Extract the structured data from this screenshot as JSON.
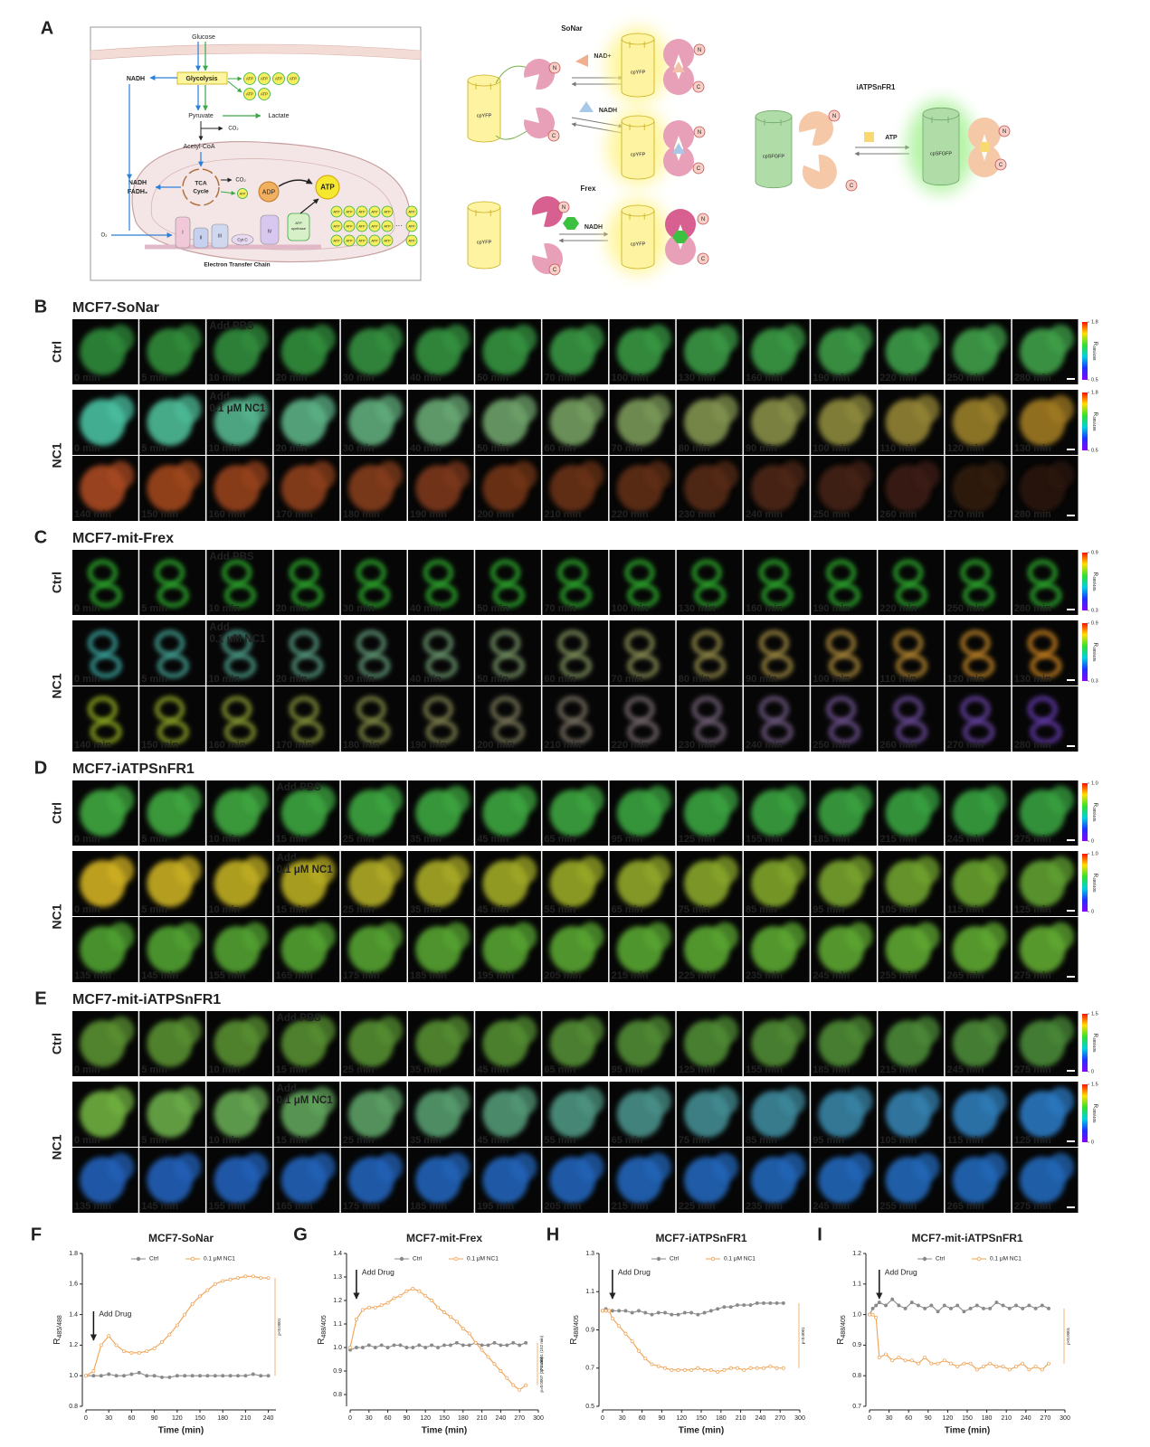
{
  "panel_a": {
    "label": "A",
    "metabolism": {
      "glucose": "Glucose",
      "glycolysis": "Glycolysis",
      "nadh": "NADH",
      "atp": "ATP",
      "pyruvate": "Pyruvate",
      "lactate": "Lactate",
      "co2": "CO₂",
      "acetyl_coa": "Acetyl-CoA",
      "tca": [
        "TCA",
        "Cycle"
      ],
      "nadh_fadh2": [
        "NADH",
        "FADH₂"
      ],
      "adp": "ADP",
      "atp_synthase": [
        "ATP",
        "synthase"
      ],
      "complexes": [
        "I",
        "II",
        "III",
        "Cyt C",
        "IV"
      ],
      "o2": "O₂",
      "ellipsis": "···",
      "etc": "Electron Transfer Chain"
    },
    "sonar": {
      "title": "SoNar",
      "fp": "cpYFP",
      "n": "N",
      "c": "C",
      "nad": "NAD+",
      "nadh": "NADH"
    },
    "frex": {
      "title": "Frex",
      "fp": "cpYFP",
      "n": "N",
      "c": "C",
      "nadh": "NADH"
    },
    "iatpsnfr1": {
      "title": "iATPSnFR1",
      "fp": "cpSFGFP",
      "n": "N",
      "c": "C",
      "atp": "ATP"
    }
  },
  "imaging": [
    {
      "label": "B",
      "title": "MCF7-SoNar",
      "rows": [
        {
          "label": "Ctrl",
          "strips": [
            [
              "0 min",
              "5 min",
              "10 min",
              "20 min",
              "30 min",
              "40 min",
              "50 min",
              "70 min",
              "100 min",
              "130 min",
              "160 min",
              "190 min",
              "220 min",
              "250 min",
              "280 min"
            ]
          ],
          "annotation": {
            "frame": 2,
            "text": [
              "Add PBS"
            ]
          },
          "colorbar": {
            "ticks": [
              0.5,
              1.8
            ],
            "label": [
              "R",
              "485/488"
            ]
          }
        },
        {
          "label": "NC1",
          "strips": [
            [
              "0 min",
              "5 min",
              "10 min",
              "20 min",
              "30 min",
              "40 min",
              "50 min",
              "60 min",
              "70 min",
              "80 min",
              "90 min",
              "100 min",
              "110 min",
              "120 min",
              "130 min"
            ],
            [
              "140 min",
              "150 min",
              "160 min",
              "170 min",
              "180 min",
              "190 min",
              "200 min",
              "210 min",
              "220 min",
              "230 min",
              "240 min",
              "250 min",
              "260 min",
              "270 min",
              "280 min"
            ]
          ],
          "annotation": {
            "frame": 2,
            "text": [
              "Add",
              "0.1 μM NC1"
            ]
          },
          "colorbar": {
            "ticks": [
              0.5,
              1.8
            ],
            "label": [
              "R",
              "485/488"
            ]
          }
        }
      ]
    },
    {
      "label": "C",
      "title": "MCF7-mit-Frex",
      "rows": [
        {
          "label": "Ctrl",
          "strips": [
            [
              "0 min",
              "5 min",
              "10 min",
              "20 min",
              "30 min",
              "40 min",
              "50 min",
              "70 min",
              "100 min",
              "130 min",
              "160 min",
              "190 min",
              "220 min",
              "250 min",
              "280 min"
            ]
          ],
          "annotation": {
            "frame": 2,
            "text": [
              "Add PBS"
            ]
          },
          "colorbar": {
            "ticks": [
              0.3,
              0.9
            ],
            "label": [
              "R",
              "488/405"
            ]
          }
        },
        {
          "label": "NC1",
          "strips": [
            [
              "0 min",
              "5 min",
              "10 min",
              "20 min",
              "30 min",
              "40 min",
              "50 min",
              "60 min",
              "70 min",
              "80 min",
              "90 min",
              "100 min",
              "110 min",
              "120 min",
              "130 min"
            ],
            [
              "140 min",
              "150 min",
              "160 min",
              "170 min",
              "180 min",
              "190 min",
              "200 min",
              "210 min",
              "220 min",
              "230 min",
              "240 min",
              "250 min",
              "260 min",
              "270 min",
              "280 min"
            ]
          ],
          "annotation": {
            "frame": 2,
            "text": [
              "Add",
              "0.1 μM NC1"
            ]
          },
          "colorbar": {
            "ticks": [
              0.3,
              0.9
            ],
            "label": [
              "R",
              "488/405"
            ]
          }
        }
      ]
    },
    {
      "label": "D",
      "title": "MCF7-iATPSnFR1",
      "rows": [
        {
          "label": "Ctrl",
          "strips": [
            [
              "0 min",
              "5 min",
              "10 min",
              "15 min",
              "25 min",
              "35 min",
              "45 min",
              "65 min",
              "95 min",
              "125 min",
              "155 min",
              "185 min",
              "215 min",
              "245 min",
              "275 min"
            ]
          ],
          "annotation": {
            "frame": 3,
            "text": [
              "Add PBS"
            ]
          },
          "colorbar": {
            "ticks": [
              0,
              {
                "value": 1,
                "label": "1.0"
              }
            ],
            "label": [
              "R",
              "488/405"
            ]
          }
        },
        {
          "label": "NC1",
          "strips": [
            [
              "0 min",
              "5 min",
              "10 min",
              "15 min",
              "25 min",
              "35 min",
              "45 min",
              "55 min",
              "65 min",
              "75 min",
              "85 min",
              "95 min",
              "105 min",
              "115 min",
              "125 min"
            ],
            [
              "135 min",
              "145 min",
              "155 min",
              "165 min",
              "175 min",
              "185 min",
              "195 min",
              "205 min",
              "215 min",
              "225 min",
              "235 min",
              "245 min",
              "255 min",
              "265 min",
              "275 min"
            ]
          ],
          "annotation": {
            "frame": 3,
            "text": [
              "Add",
              "0.1 μM NC1"
            ]
          },
          "colorbar": {
            "ticks": [
              0,
              {
                "value": 1,
                "label": "1.0"
              }
            ],
            "label": [
              "R",
              "488/405"
            ]
          }
        }
      ]
    },
    {
      "label": "E",
      "title": "MCF7-mit-iATPSnFR1",
      "rows": [
        {
          "label": "Ctrl",
          "strips": [
            [
              "0 min",
              "5 min",
              "10 min",
              "15 min",
              "25 min",
              "35 min",
              "45 min",
              "65 min",
              "95 min",
              "125 min",
              "155 min",
              "185 min",
              "215 min",
              "245 min",
              "275 min"
            ]
          ],
          "annotation": {
            "frame": 3,
            "text": [
              "Add PBS"
            ]
          },
          "colorbar": {
            "ticks": [
              0,
              1.5
            ],
            "label": [
              "R",
              "488/405"
            ]
          }
        },
        {
          "label": "NC1",
          "strips": [
            [
              "0 min",
              "5 min",
              "10 min",
              "15 min",
              "25 min",
              "35 min",
              "45 min",
              "55 min",
              "65 min",
              "75 min",
              "85 min",
              "95 min",
              "105 min",
              "115 min",
              "125 min"
            ],
            [
              "135 min",
              "145 min",
              "155 min",
              "165 min",
              "175 min",
              "185 min",
              "195 min",
              "205 min",
              "215 min",
              "225 min",
              "235 min",
              "245 min",
              "255 min",
              "265 min",
              "275 min"
            ]
          ],
          "annotation": {
            "frame": 3,
            "text": [
              "Add",
              "0.1 μM NC1"
            ]
          },
          "colorbar": {
            "ticks": [
              0,
              1.5
            ],
            "label": [
              "R",
              "488/405"
            ]
          }
        }
      ]
    }
  ],
  "chart_data": [
    {
      "type": "line",
      "panel": "F",
      "title": "MCF7-SoNar",
      "xlabel": "Time (min)",
      "ylabel": "R",
      "ylabel_sub": "485/488",
      "x": [
        0,
        10,
        20,
        30,
        40,
        50,
        60,
        70,
        80,
        90,
        100,
        110,
        120,
        130,
        140,
        150,
        160,
        170,
        180,
        190,
        200,
        210,
        220,
        230,
        240
      ],
      "xlim": [
        0,
        250
      ],
      "xticks": [
        0,
        30,
        60,
        90,
        120,
        150,
        180,
        210,
        240
      ],
      "ylim": [
        0.8,
        1.8
      ],
      "yticks": [
        0.8,
        {
          "value": 1,
          "label": "1.0"
        },
        1.2,
        1.4,
        1.6,
        1.8
      ],
      "series": [
        {
          "name": "Ctrl",
          "color": "#8a8a8a",
          "values": [
            1.0,
            1.0,
            1.0,
            1.01,
            1.0,
            1.0,
            1.01,
            1.02,
            1.0,
            1.0,
            0.99,
            0.99,
            1.0,
            1.0,
            1.0,
            1.0,
            1.0,
            1.0,
            1.0,
            1.0,
            1.0,
            1.0,
            1.01,
            1.0,
            1.0
          ]
        },
        {
          "name": "0.1 μM NC1",
          "color": "#f0a050",
          "values": [
            1.0,
            1.03,
            1.2,
            1.26,
            1.2,
            1.16,
            1.15,
            1.15,
            1.16,
            1.18,
            1.22,
            1.27,
            1.33,
            1.4,
            1.47,
            1.52,
            1.56,
            1.6,
            1.62,
            1.63,
            1.64,
            1.65,
            1.65,
            1.64,
            1.64
          ]
        }
      ],
      "annotation": {
        "text": "Add Drug",
        "x": 10
      },
      "p_labels": [
        "p<0.0001"
      ]
    },
    {
      "type": "line",
      "panel": "G",
      "title": "MCF7-mit-Frex",
      "xlabel": "Time (min)",
      "ylabel": "R",
      "ylabel_sub": "488/405",
      "x": [
        0,
        10,
        20,
        30,
        40,
        50,
        60,
        70,
        80,
        90,
        100,
        110,
        120,
        130,
        140,
        150,
        160,
        170,
        180,
        190,
        200,
        210,
        220,
        230,
        240,
        250,
        260,
        270,
        280
      ],
      "xlim": [
        0,
        300
      ],
      "xticks": [
        0,
        30,
        60,
        90,
        120,
        150,
        180,
        210,
        240,
        270,
        300
      ],
      "ylim": [
        0.75,
        1.4
      ],
      "yticks": [
        0.8,
        0.9,
        {
          "value": 1,
          "label": "1.0"
        },
        1.1,
        1.2,
        1.3,
        1.4
      ],
      "series": [
        {
          "name": "Ctrl",
          "color": "#8a8a8a",
          "values": [
            0.99,
            1.0,
            1.0,
            1.01,
            1.0,
            1.01,
            1.0,
            1.01,
            1.01,
            1.0,
            1.0,
            1.01,
            1.0,
            1.01,
            1.0,
            1.01,
            1.01,
            1.02,
            1.01,
            1.01,
            1.02,
            1.01,
            1.01,
            1.02,
            1.01,
            1.01,
            1.02,
            1.01,
            1.02
          ]
        },
        {
          "name": "0.1 μM NC1",
          "color": "#f0a050",
          "values": [
            1.0,
            1.12,
            1.16,
            1.17,
            1.17,
            1.18,
            1.19,
            1.21,
            1.22,
            1.24,
            1.25,
            1.24,
            1.22,
            1.2,
            1.17,
            1.15,
            1.13,
            1.11,
            1.08,
            1.06,
            1.02,
            0.99,
            0.96,
            0.93,
            0.9,
            0.87,
            0.84,
            0.82,
            0.84
          ]
        }
      ],
      "annotation": {
        "text": "Add Drug",
        "x": 10
      },
      "p_labels": [
        "p<0.0001 (152 min)",
        "p=0.0007 (271 min)"
      ]
    },
    {
      "type": "line",
      "panel": "H",
      "title": "MCF7-iATPSnFR1",
      "xlabel": "Time (min)",
      "ylabel": "R",
      "ylabel_sub": "488/405",
      "x": [
        0,
        5,
        10,
        15,
        25,
        35,
        45,
        55,
        65,
        75,
        85,
        95,
        105,
        115,
        125,
        135,
        145,
        155,
        165,
        175,
        185,
        195,
        205,
        215,
        225,
        235,
        245,
        255,
        265,
        275
      ],
      "xlim": [
        0,
        300
      ],
      "xticks": [
        0,
        30,
        60,
        90,
        120,
        150,
        180,
        210,
        240,
        270,
        300
      ],
      "ylim": [
        0.5,
        1.3
      ],
      "yticks": [
        0.5,
        0.7,
        0.9,
        1.1,
        1.3
      ],
      "series": [
        {
          "name": "Ctrl",
          "color": "#8a8a8a",
          "values": [
            1.0,
            1.01,
            1.0,
            1.0,
            1.0,
            1.0,
            0.99,
            1.0,
            0.99,
            0.98,
            0.99,
            0.99,
            0.98,
            0.98,
            0.99,
            0.99,
            0.98,
            0.99,
            1.0,
            1.01,
            1.02,
            1.02,
            1.03,
            1.03,
            1.03,
            1.04,
            1.04,
            1.04,
            1.04,
            1.04
          ]
        },
        {
          "name": "0.1 μM NC1",
          "color": "#f0a050",
          "values": [
            1.0,
            1.0,
            1.0,
            0.96,
            0.92,
            0.88,
            0.84,
            0.79,
            0.75,
            0.72,
            0.71,
            0.7,
            0.69,
            0.69,
            0.69,
            0.69,
            0.7,
            0.69,
            0.69,
            0.68,
            0.69,
            0.7,
            0.7,
            0.69,
            0.7,
            0.7,
            0.7,
            0.71,
            0.7,
            0.7
          ]
        }
      ],
      "annotation": {
        "text": "Add Drug",
        "x": 15
      },
      "p_labels": [
        "p<0.0001"
      ]
    },
    {
      "type": "line",
      "panel": "I",
      "title": "MCF7-mit-iATPSnFR1",
      "xlabel": "Time (min)",
      "ylabel": "R",
      "ylabel_sub": "488/405",
      "x": [
        0,
        5,
        10,
        15,
        25,
        35,
        45,
        55,
        65,
        75,
        85,
        95,
        105,
        115,
        125,
        135,
        145,
        155,
        165,
        175,
        185,
        195,
        205,
        215,
        225,
        235,
        245,
        255,
        265,
        275
      ],
      "xlim": [
        0,
        300
      ],
      "xticks": [
        0,
        30,
        60,
        90,
        120,
        150,
        180,
        210,
        240,
        270,
        300
      ],
      "ylim": [
        0.7,
        1.2
      ],
      "yticks": [
        0.7,
        0.8,
        0.9,
        {
          "value": 1,
          "label": "1.0"
        },
        1.1,
        1.2
      ],
      "series": [
        {
          "name": "Ctrl",
          "color": "#8a8a8a",
          "values": [
            1.0,
            1.02,
            1.03,
            1.04,
            1.03,
            1.05,
            1.03,
            1.02,
            1.04,
            1.03,
            1.02,
            1.03,
            1.01,
            1.03,
            1.02,
            1.03,
            1.01,
            1.02,
            1.03,
            1.02,
            1.02,
            1.04,
            1.03,
            1.02,
            1.03,
            1.02,
            1.03,
            1.02,
            1.03,
            1.02
          ]
        },
        {
          "name": "0.1 μM NC1",
          "color": "#f0a050",
          "values": [
            1.0,
            1.0,
            0.99,
            0.86,
            0.87,
            0.85,
            0.86,
            0.85,
            0.85,
            0.84,
            0.86,
            0.84,
            0.84,
            0.85,
            0.84,
            0.83,
            0.84,
            0.84,
            0.82,
            0.83,
            0.84,
            0.83,
            0.83,
            0.82,
            0.83,
            0.84,
            0.82,
            0.83,
            0.82,
            0.84
          ]
        }
      ],
      "annotation": {
        "text": "Add Drug",
        "x": 15
      },
      "p_labels": [
        "p<0.0001"
      ]
    }
  ]
}
